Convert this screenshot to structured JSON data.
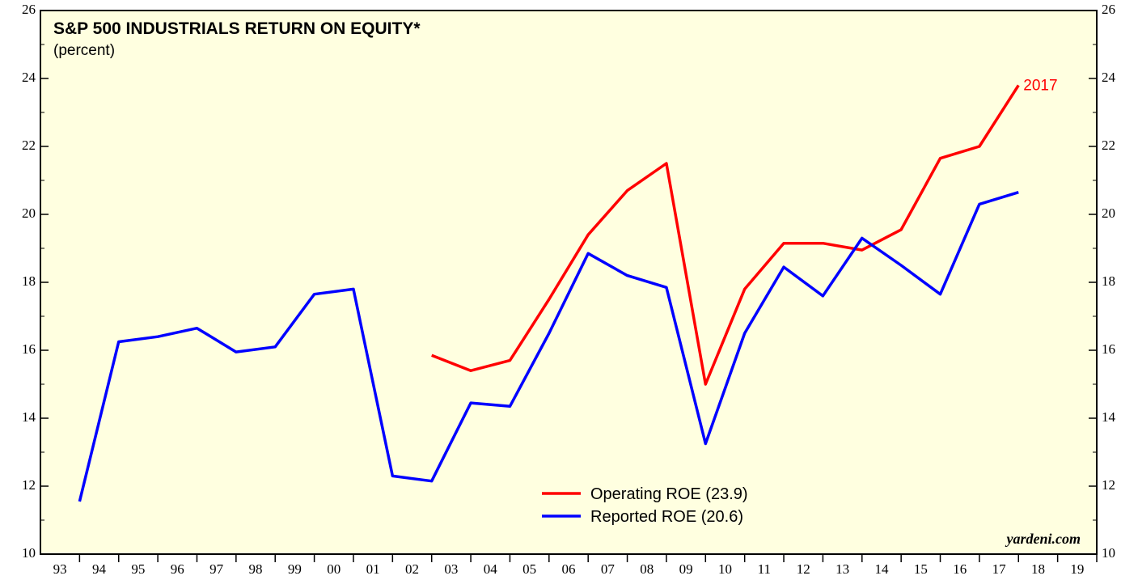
{
  "chart_data": {
    "type": "line",
    "title": "S&P 500 INDUSTRIALS RETURN ON EQUITY*",
    "subtitle": "(percent)",
    "annotation": "2017",
    "source": "yardeni.com",
    "x": [
      1993,
      1994,
      1995,
      1996,
      1997,
      1998,
      1999,
      2000,
      2001,
      2002,
      2003,
      2004,
      2005,
      2006,
      2007,
      2008,
      2009,
      2010,
      2011,
      2012,
      2013,
      2014,
      2015,
      2016,
      2017
    ],
    "series": [
      {
        "name": "Operating ROE (23.9)",
        "color": "#ff0000",
        "values": [
          null,
          null,
          null,
          null,
          null,
          null,
          null,
          null,
          null,
          15.85,
          15.4,
          15.7,
          17.5,
          19.4,
          20.7,
          21.5,
          15.0,
          17.8,
          19.15,
          19.15,
          18.95,
          19.55,
          21.65,
          22.0,
          23.8
        ]
      },
      {
        "name": "Reported ROE (20.6)",
        "color": "#0000ff",
        "values": [
          11.55,
          16.25,
          16.4,
          16.65,
          15.95,
          16.1,
          17.65,
          17.8,
          12.3,
          12.15,
          14.45,
          14.35,
          16.5,
          18.85,
          18.2,
          17.85,
          13.25,
          16.5,
          18.45,
          17.6,
          19.3,
          18.5,
          17.65,
          20.3,
          20.65
        ]
      }
    ],
    "xlim": [
      1992,
      2019
    ],
    "xticks": [
      {
        "value": 1992.5,
        "label": "93"
      },
      {
        "value": 1993.5,
        "label": "94"
      },
      {
        "value": 1994.5,
        "label": "95"
      },
      {
        "value": 1995.5,
        "label": "96"
      },
      {
        "value": 1996.5,
        "label": "97"
      },
      {
        "value": 1997.5,
        "label": "98"
      },
      {
        "value": 1998.5,
        "label": "99"
      },
      {
        "value": 1999.5,
        "label": "00"
      },
      {
        "value": 2000.5,
        "label": "01"
      },
      {
        "value": 2001.5,
        "label": "02"
      },
      {
        "value": 2002.5,
        "label": "03"
      },
      {
        "value": 2003.5,
        "label": "04"
      },
      {
        "value": 2004.5,
        "label": "05"
      },
      {
        "value": 2005.5,
        "label": "06"
      },
      {
        "value": 2006.5,
        "label": "07"
      },
      {
        "value": 2007.5,
        "label": "08"
      },
      {
        "value": 2008.5,
        "label": "09"
      },
      {
        "value": 2009.5,
        "label": "10"
      },
      {
        "value": 2010.5,
        "label": "11"
      },
      {
        "value": 2011.5,
        "label": "12"
      },
      {
        "value": 2012.5,
        "label": "13"
      },
      {
        "value": 2013.5,
        "label": "14"
      },
      {
        "value": 2014.5,
        "label": "15"
      },
      {
        "value": 2015.5,
        "label": "16"
      },
      {
        "value": 2016.5,
        "label": "17"
      },
      {
        "value": 2017.5,
        "label": "18"
      },
      {
        "value": 2018.5,
        "label": "19"
      }
    ],
    "ylim": [
      10,
      26
    ],
    "yticks": [
      10,
      12,
      14,
      16,
      18,
      20,
      22,
      24,
      26
    ],
    "y2lim": [
      10,
      26
    ],
    "y2ticks": [
      10,
      12,
      14,
      16,
      18,
      20,
      22,
      24,
      26
    ],
    "legend": "lower center"
  }
}
